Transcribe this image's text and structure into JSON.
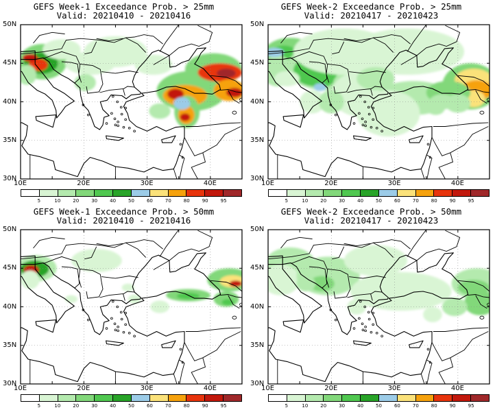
{
  "panels": [
    {
      "title": "GEFS Week-1 Exceedance Prob. > 25mm",
      "valid": "Valid: 20210410 - 20210416",
      "intensity": "heavy",
      "week": 1
    },
    {
      "title": "GEFS Week-2 Exceedance Prob. > 25mm",
      "valid": "Valid: 20210417 - 20210423",
      "intensity": "medium",
      "week": 2
    },
    {
      "title": "GEFS Week-1 Exceedance Prob. > 50mm",
      "valid": "Valid: 20210410 - 20210416",
      "intensity": "light",
      "week": 1
    },
    {
      "title": "GEFS Week-2 Exceedance Prob. > 50mm",
      "valid": "Valid: 20210417 - 20210423",
      "intensity": "faint",
      "week": 2
    }
  ],
  "lat_labels": [
    "50N",
    "45N",
    "40N",
    "35N",
    "30N"
  ],
  "lon_labels": [
    "10E",
    "20E",
    "30E",
    "40E"
  ],
  "colorbar": {
    "labels": [
      "5",
      "10",
      "20",
      "30",
      "40",
      "50",
      "60",
      "70",
      "80",
      "90",
      "95"
    ],
    "colors": [
      "#ffffff",
      "#d9f5d4",
      "#b4eaae",
      "#82d87a",
      "#50c850",
      "#28a428",
      "#9ccce8",
      "#fbe27a",
      "#f6a20d",
      "#e8340c",
      "#c2180c",
      "#a0282a"
    ]
  }
}
